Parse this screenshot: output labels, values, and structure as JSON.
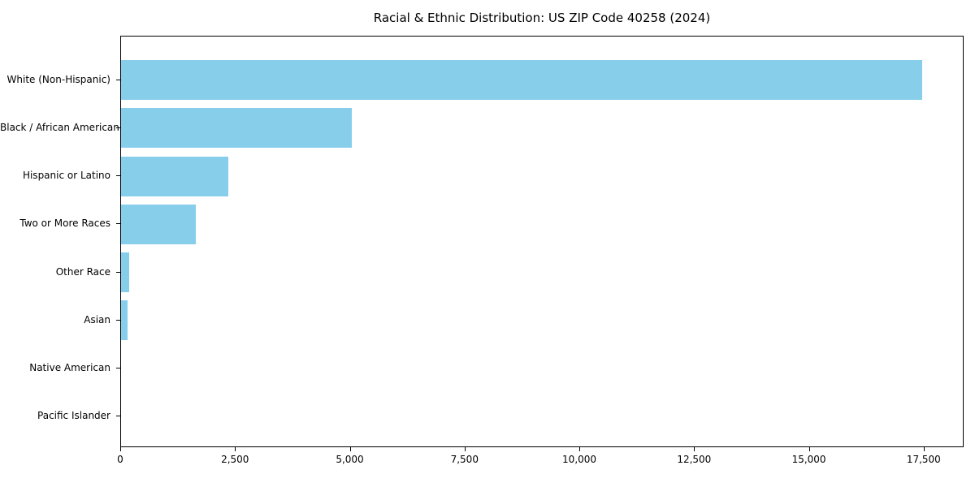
{
  "header": {
    "title": "Racial & Ethnic Distribution: US ZIP Code 40258 (2024)"
  },
  "colors": {
    "bar": "#87CEEB",
    "axis": "#000000",
    "text": "#000000",
    "background": "#FFFFFF"
  },
  "chart_data": {
    "type": "bar",
    "orientation": "horizontal",
    "title": "Racial & Ethnic Distribution: US ZIP Code 40258 (2024)",
    "categories": [
      "White (Non-Hispanic)",
      "Black / African American",
      "Hispanic or Latino",
      "Two or More Races",
      "Other Race",
      "Asian",
      "Native American",
      "Pacific Islander"
    ],
    "values": [
      17480,
      5030,
      2340,
      1630,
      175,
      150,
      0,
      0
    ],
    "xlabel": "",
    "ylabel": "",
    "xlim": [
      0,
      18370
    ],
    "xticks": {
      "values": [
        0,
        2500,
        5000,
        7500,
        10000,
        12500,
        15000,
        17500
      ],
      "labels": [
        "0",
        "2,500",
        "5,000",
        "7,500",
        "10,000",
        "12,500",
        "15,000",
        "17,500"
      ]
    },
    "grid": false,
    "legend": null,
    "bar_color": "#87CEEB"
  }
}
